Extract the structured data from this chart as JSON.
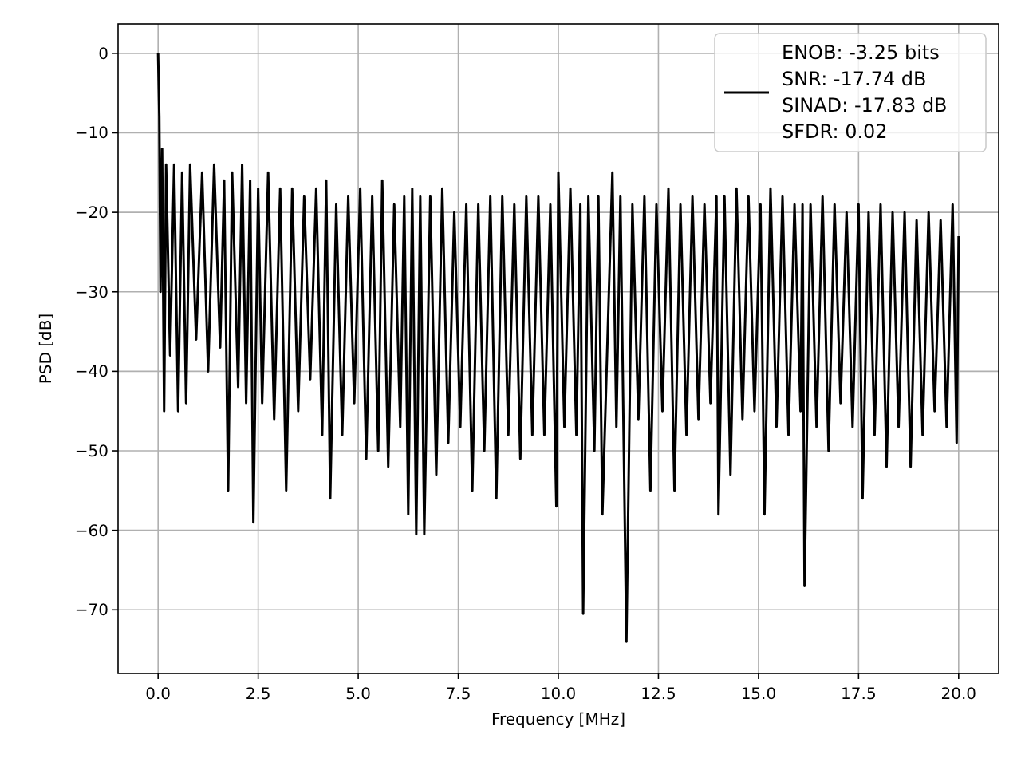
{
  "chart_data": {
    "type": "line",
    "xlabel": "Frequency [MHz]",
    "ylabel": "PSD [dB]",
    "xlim": [
      -1,
      21
    ],
    "ylim": [
      -78,
      3.7
    ],
    "xticks": [
      {
        "value": 0,
        "label": "0.0"
      },
      {
        "value": 2.5,
        "label": "2.5"
      },
      {
        "value": 5,
        "label": "5.0"
      },
      {
        "value": 7.5,
        "label": "7.5"
      },
      {
        "value": 10,
        "label": "10.0"
      },
      {
        "value": 12.5,
        "label": "12.5"
      },
      {
        "value": 15,
        "label": "15.0"
      },
      {
        "value": 17.5,
        "label": "17.5"
      },
      {
        "value": 20,
        "label": "20.0"
      }
    ],
    "yticks": [
      {
        "value": -70,
        "label": "−70"
      },
      {
        "value": -60,
        "label": "−60"
      },
      {
        "value": -50,
        "label": "−50"
      },
      {
        "value": -40,
        "label": "−40"
      },
      {
        "value": -30,
        "label": "−30"
      },
      {
        "value": -20,
        "label": "−20"
      },
      {
        "value": -10,
        "label": "−10"
      },
      {
        "value": 0,
        "label": "0"
      }
    ],
    "grid": true,
    "legend": "top right",
    "series": [
      {
        "name": "ENOB: -3.25 bits\nSNR: -17.74 dB\nSINAD: -17.83 dB\nSFDR: 0.02",
        "color": "#000000",
        "x": [
          0,
          0.03,
          0.06,
          0.1,
          0.15,
          0.2,
          0.3,
          0.4,
          0.5,
          0.6,
          0.7,
          0.8,
          0.95,
          1.1,
          1.25,
          1.4,
          1.55,
          1.65,
          1.75,
          1.85,
          2.0,
          2.1,
          2.2,
          2.3,
          2.38,
          2.5,
          2.6,
          2.75,
          2.9,
          3.05,
          3.2,
          3.35,
          3.5,
          3.65,
          3.8,
          3.95,
          4.1,
          4.2,
          4.3,
          4.45,
          4.6,
          4.75,
          4.9,
          5.05,
          5.2,
          5.35,
          5.5,
          5.6,
          5.75,
          5.9,
          6.05,
          6.15,
          6.25,
          6.35,
          6.45,
          6.55,
          6.65,
          6.8,
          6.95,
          7.1,
          7.25,
          7.4,
          7.55,
          7.7,
          7.85,
          8.0,
          8.15,
          8.3,
          8.45,
          8.6,
          8.75,
          8.9,
          9.05,
          9.2,
          9.35,
          9.5,
          9.65,
          9.8,
          9.95,
          10.0,
          10.15,
          10.3,
          10.45,
          10.55,
          10.62,
          10.75,
          10.9,
          11.0,
          11.1,
          11.35,
          11.45,
          11.55,
          11.7,
          11.85,
          12.0,
          12.15,
          12.3,
          12.45,
          12.6,
          12.75,
          12.9,
          13.05,
          13.2,
          13.35,
          13.5,
          13.65,
          13.8,
          13.95,
          14.0,
          14.15,
          14.3,
          14.45,
          14.6,
          14.75,
          14.9,
          15.05,
          15.15,
          15.3,
          15.45,
          15.6,
          15.75,
          15.9,
          16.05,
          16.1,
          16.15,
          16.3,
          16.45,
          16.6,
          16.75,
          16.9,
          17.05,
          17.2,
          17.35,
          17.5,
          17.6,
          17.75,
          17.9,
          18.05,
          18.2,
          18.35,
          18.5,
          18.65,
          18.8,
          18.95,
          19.1,
          19.25,
          19.4,
          19.55,
          19.7,
          19.85,
          19.95,
          20.0
        ],
        "values": [
          0,
          -8,
          -30,
          -12,
          -45,
          -14,
          -38,
          -14,
          -45,
          -15,
          -44,
          -14,
          -36,
          -15,
          -40,
          -14,
          -37,
          -16,
          -55,
          -15,
          -42,
          -14,
          -44,
          -16,
          -59,
          -17,
          -44,
          -15,
          -46,
          -17,
          -55,
          -17,
          -45,
          -18,
          -41,
          -17,
          -48,
          -16,
          -56,
          -19,
          -48,
          -18,
          -44,
          -17,
          -51,
          -18,
          -50,
          -16,
          -52,
          -19,
          -47,
          -18,
          -58,
          -17,
          -60.5,
          -18,
          -60.5,
          -18,
          -53,
          -17,
          -49,
          -20,
          -47,
          -19,
          -55,
          -19,
          -50,
          -18,
          -56,
          -18,
          -48,
          -19,
          -51,
          -18,
          -48,
          -18,
          -48,
          -19,
          -57,
          -15,
          -47,
          -17,
          -48,
          -19,
          -70.5,
          -18,
          -50,
          -18,
          -58,
          -15,
          -47,
          -18,
          -74,
          -19,
          -46,
          -18,
          -55,
          -19,
          -45,
          -17,
          -55,
          -19,
          -48,
          -18,
          -46,
          -19,
          -44,
          -18,
          -58,
          -18,
          -53,
          -17,
          -46,
          -18,
          -45,
          -19,
          -58,
          -17,
          -47,
          -18,
          -48,
          -19,
          -45,
          -19,
          -67,
          -19,
          -47,
          -18,
          -50,
          -19,
          -44,
          -20,
          -47,
          -19,
          -56,
          -20,
          -48,
          -19,
          -52,
          -20,
          -47,
          -20,
          -52,
          -21,
          -48,
          -20,
          -45,
          -21,
          -47,
          -19,
          -49,
          -23
        ]
      }
    ]
  }
}
